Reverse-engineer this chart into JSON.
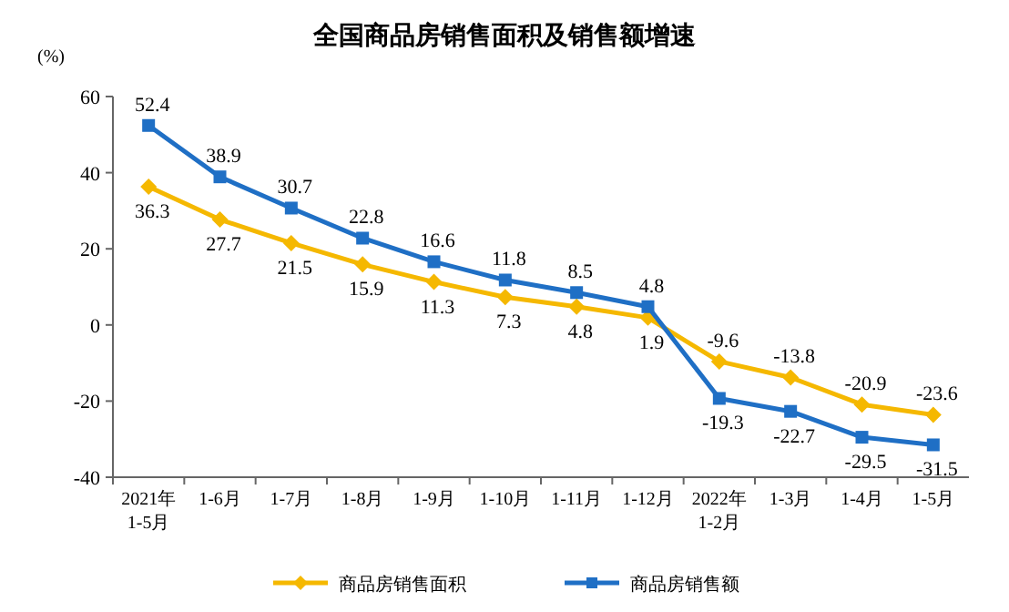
{
  "chart_data": {
    "type": "line",
    "title": "全国商品房销售面积及销售额增速",
    "ylabel": "(%)",
    "categories": [
      "2021年\n1-5月",
      "1-6月",
      "1-7月",
      "1-8月",
      "1-9月",
      "1-10月",
      "1-11月",
      "1-12月",
      "2022年\n1-2月",
      "1-3月",
      "1-4月",
      "1-5月"
    ],
    "series": [
      {
        "name": "商品房销售面积",
        "color": "#f5b800",
        "marker": "diamond",
        "values": [
          36.3,
          27.7,
          21.5,
          15.9,
          11.3,
          7.3,
          4.8,
          1.9,
          -9.6,
          -13.8,
          -20.9,
          -23.6
        ]
      },
      {
        "name": "商品房销售额",
        "color": "#1f6fc5",
        "marker": "square",
        "values": [
          52.4,
          38.9,
          30.7,
          22.8,
          16.6,
          11.8,
          8.5,
          4.8,
          -19.3,
          -22.7,
          -29.5,
          -31.5
        ]
      }
    ],
    "ylim": [
      -40,
      60
    ],
    "yticks": [
      -40,
      -20,
      0,
      20,
      40,
      60
    ],
    "data_labels": true,
    "legend": "bottom",
    "grid": false,
    "line_style": "solid"
  }
}
